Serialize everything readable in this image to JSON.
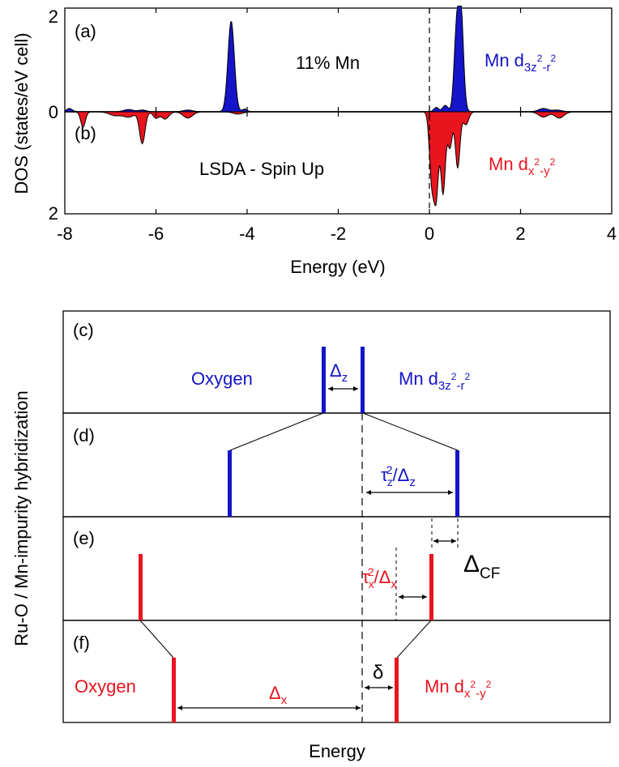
{
  "chart_data": {
    "type": "area",
    "xlabel": "Energy (eV)",
    "ylabel": "DOS  (states/eV cell)",
    "xlim": [
      -8,
      4
    ],
    "x_ticks": [
      "-8",
      "-6",
      "-4",
      "-2",
      "0",
      "2",
      "4"
    ],
    "fermi_level": 0,
    "panels": [
      {
        "label": "(a)",
        "annotation": "11% Mn",
        "series_name": "Mn d",
        "orbital_sub": "3z",
        "orbital_sup": "2",
        "orbital_mid": "-r",
        "orbital_sup2": "2",
        "color": "#1414c8",
        "ylim": [
          0,
          2
        ],
        "y_ticks": [
          "2",
          "0"
        ],
        "direction": "up",
        "peaks": [
          {
            "x": -7.9,
            "y": 0.06,
            "w": 0.06
          },
          {
            "x": -6.6,
            "y": 0.04,
            "w": 0.1
          },
          {
            "x": -6.3,
            "y": 0.03,
            "w": 0.08
          },
          {
            "x": -5.3,
            "y": 0.03,
            "w": 0.1
          },
          {
            "x": -4.35,
            "y": 1.75,
            "w": 0.07
          },
          {
            "x": -4.05,
            "y": 0.05,
            "w": 0.05
          },
          {
            "x": 0.15,
            "y": 0.08,
            "w": 0.05
          },
          {
            "x": 0.35,
            "y": 0.12,
            "w": 0.06
          },
          {
            "x": 0.58,
            "y": 1.1,
            "w": 0.05
          },
          {
            "x": 0.68,
            "y": 2.2,
            "w": 0.06
          },
          {
            "x": 2.5,
            "y": 0.06,
            "w": 0.1
          },
          {
            "x": 2.8,
            "y": 0.03,
            "w": 0.1
          }
        ]
      },
      {
        "label": "(b)",
        "annotation": "LSDA - Spin Up",
        "series_name": "Mn d",
        "orbital_sub": "x",
        "orbital_sup": "2",
        "orbital_mid": "-y",
        "orbital_sup2": "2",
        "color": "#e8141e",
        "ylim": [
          0,
          2
        ],
        "y_ticks": [
          "",
          "2"
        ],
        "direction": "down",
        "peaks": [
          {
            "x": -7.6,
            "y": 0.3,
            "w": 0.05
          },
          {
            "x": -6.9,
            "y": 0.07,
            "w": 0.12
          },
          {
            "x": -6.6,
            "y": 0.1,
            "w": 0.12
          },
          {
            "x": -6.3,
            "y": 0.62,
            "w": 0.06
          },
          {
            "x": -6.0,
            "y": 0.12,
            "w": 0.06
          },
          {
            "x": -5.8,
            "y": 0.14,
            "w": 0.08
          },
          {
            "x": -5.3,
            "y": 0.12,
            "w": 0.1
          },
          {
            "x": -4.2,
            "y": 0.04,
            "w": 0.1
          },
          {
            "x": 0.05,
            "y": 1.3,
            "w": 0.05
          },
          {
            "x": 0.15,
            "y": 1.6,
            "w": 0.05
          },
          {
            "x": 0.3,
            "y": 1.6,
            "w": 0.05
          },
          {
            "x": 0.45,
            "y": 0.7,
            "w": 0.05
          },
          {
            "x": 0.62,
            "y": 1.1,
            "w": 0.05
          },
          {
            "x": 0.8,
            "y": 0.25,
            "w": 0.06
          },
          {
            "x": 2.5,
            "y": 0.1,
            "w": 0.1
          },
          {
            "x": 2.85,
            "y": 0.12,
            "w": 0.1
          }
        ]
      }
    ]
  },
  "diagram": {
    "ylabel": "Ru-O / Mn-impurity hybridization",
    "xlabel": "Energy",
    "panels": [
      {
        "label": "(c)",
        "oxygen_label": "Oxygen",
        "mn_label": "Mn d",
        "mn_sub": "3z",
        "mn_sup": "2",
        "mn_mid": "-r",
        "mn_sup2": "2",
        "delta_label": "Δ",
        "delta_sub": "z"
      },
      {
        "label": "(d)",
        "tau": "τ",
        "tau_sub": "z",
        "tau_sup": "2",
        "slash": "/Δ",
        "slash_sub": "z"
      },
      {
        "label": "(e)",
        "tau": "τ",
        "tau_sub": "x",
        "tau_sup": "2",
        "slash": "/Δ",
        "slash_sub": "x",
        "cf": "Δ",
        "cf_sub": "CF"
      },
      {
        "label": "(f)",
        "oxygen_label": "Oxygen",
        "mn_label": "Mn d",
        "mn_sub": "x",
        "mn_sup": "2",
        "mn_mid": "-y",
        "mn_sup2": "2",
        "delta_label": "Δ",
        "delta_sub": "x",
        "delta_small": "δ"
      }
    ]
  }
}
